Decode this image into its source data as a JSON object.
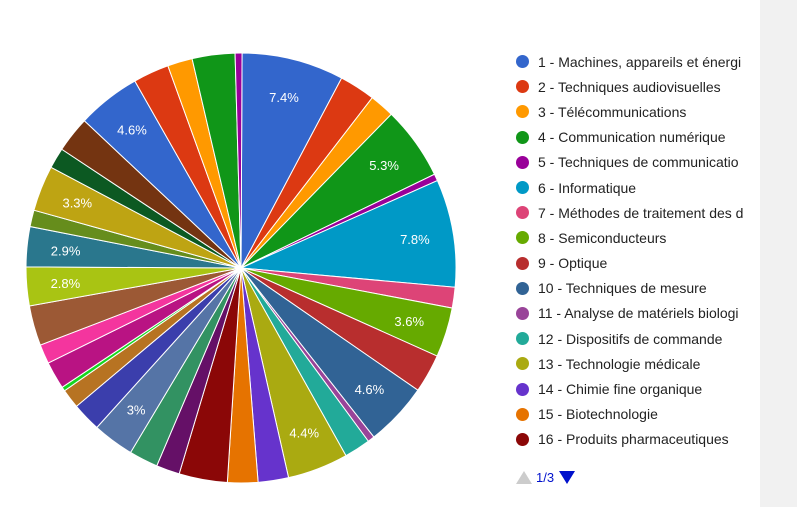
{
  "chart_data": {
    "type": "pie",
    "legend_position": "right",
    "legend_items": [
      {
        "label": "1 - Machines, appareils et énergi",
        "color": "#3366cc"
      },
      {
        "label": "2 - Techniques audiovisuelles",
        "color": "#dc3912"
      },
      {
        "label": "3 - Télécommunications",
        "color": "#ff9900"
      },
      {
        "label": "4 - Communication numérique",
        "color": "#109618"
      },
      {
        "label": "5 - Techniques de communicatio",
        "color": "#990099"
      },
      {
        "label": "6 - Informatique",
        "color": "#0099c6"
      },
      {
        "label": "7 - Méthodes de traitement des d",
        "color": "#dd4477"
      },
      {
        "label": "8 - Semiconducteurs",
        "color": "#66aa00"
      },
      {
        "label": "9 - Optique",
        "color": "#b82e2e"
      },
      {
        "label": "10 - Techniques de mesure",
        "color": "#316395"
      },
      {
        "label": "11 - Analyse de matériels biologi",
        "color": "#994499"
      },
      {
        "label": "12 - Dispositifs de commande",
        "color": "#22aa99"
      },
      {
        "label": "13 - Technologie médicale",
        "color": "#aaaa11"
      },
      {
        "label": "14 - Chimie fine organique",
        "color": "#6633cc"
      },
      {
        "label": "15 - Biotechnologie",
        "color": "#e67300"
      },
      {
        "label": "16 - Produits pharmaceutiques",
        "color": "#8b0707"
      }
    ],
    "slices": [
      {
        "value": 7.4,
        "color": "#3366cc",
        "label": "7.4%"
      },
      {
        "value": 2.6,
        "color": "#dc3912",
        "label": ""
      },
      {
        "value": 1.8,
        "color": "#ff9900",
        "label": ""
      },
      {
        "value": 5.3,
        "color": "#109618",
        "label": "5.3%"
      },
      {
        "value": 0.5,
        "color": "#990099",
        "label": ""
      },
      {
        "value": 7.8,
        "color": "#0099c6",
        "label": "7.8%"
      },
      {
        "value": 1.5,
        "color": "#dd4477",
        "label": ""
      },
      {
        "value": 3.6,
        "color": "#66aa00",
        "label": "3.6%"
      },
      {
        "value": 2.8,
        "color": "#b82e2e",
        "label": ""
      },
      {
        "value": 4.6,
        "color": "#316395",
        "label": "4.6%"
      },
      {
        "value": 0.5,
        "color": "#994499",
        "label": ""
      },
      {
        "value": 1.9,
        "color": "#22aa99",
        "label": ""
      },
      {
        "value": 4.4,
        "color": "#aaaa11",
        "label": "4.4%"
      },
      {
        "value": 2.2,
        "color": "#6633cc",
        "label": ""
      },
      {
        "value": 2.2,
        "color": "#e67300",
        "label": ""
      },
      {
        "value": 3.5,
        "color": "#8b0707",
        "label": ""
      },
      {
        "value": 1.7,
        "color": "#651067",
        "label": ""
      },
      {
        "value": 2.1,
        "color": "#329262",
        "label": ""
      },
      {
        "value": 3.0,
        "color": "#5574a6",
        "label": "3%"
      },
      {
        "value": 2.1,
        "color": "#3b3eac",
        "label": ""
      },
      {
        "value": 1.4,
        "color": "#b77322",
        "label": ""
      },
      {
        "value": 0.3,
        "color": "#16d620",
        "label": ""
      },
      {
        "value": 2.0,
        "color": "#b91383",
        "label": ""
      },
      {
        "value": 1.4,
        "color": "#f4359e",
        "label": ""
      },
      {
        "value": 2.9,
        "color": "#9c5935",
        "label": ""
      },
      {
        "value": 2.8,
        "color": "#a9c413",
        "label": "2.8%"
      },
      {
        "value": 2.9,
        "color": "#2a778d",
        "label": "2.9%"
      },
      {
        "value": 1.2,
        "color": "#668d1c",
        "label": ""
      },
      {
        "value": 3.3,
        "color": "#bea413",
        "label": "3.3%"
      },
      {
        "value": 1.5,
        "color": "#0c5922",
        "label": ""
      },
      {
        "value": 2.6,
        "color": "#743411",
        "label": ""
      },
      {
        "value": 4.6,
        "color": "#3366cc",
        "label": "4.6%"
      },
      {
        "value": 2.6,
        "color": "#dc3912",
        "label": ""
      },
      {
        "value": 1.8,
        "color": "#ff9900",
        "label": ""
      },
      {
        "value": 3.1,
        "color": "#109618",
        "label": ""
      },
      {
        "value": 0.5,
        "color": "#990099",
        "label": ""
      }
    ]
  },
  "pager": {
    "text": "1/3",
    "prev_icon": "triangle-up-icon",
    "next_icon": "triangle-down-icon",
    "active_color": "#0011cc",
    "inactive_color": "#cccccc"
  }
}
